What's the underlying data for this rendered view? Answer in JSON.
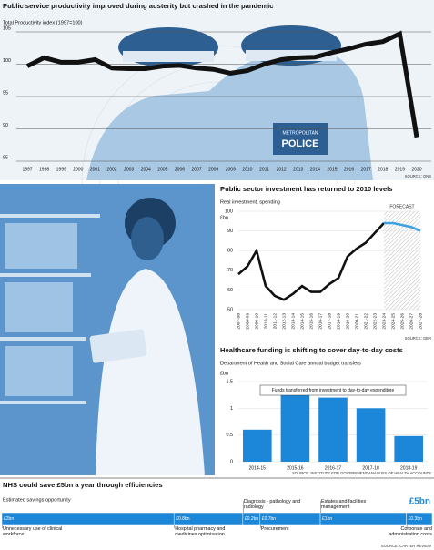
{
  "chart_data": [
    {
      "type": "line",
      "title": "Public service productivity improved during austerity but crashed in the pandemic",
      "subtitle": "Total Productivity index (1997=100)",
      "source": "SOURCE: ONS",
      "x": [
        1997,
        1998,
        1999,
        2000,
        2001,
        2002,
        2003,
        2004,
        2005,
        2006,
        2007,
        2008,
        2009,
        2010,
        2011,
        2012,
        2013,
        2014,
        2015,
        2016,
        2017,
        2018,
        2019,
        2020
      ],
      "xlim": [
        1997,
        2020
      ],
      "series": [
        {
          "color": "#111111",
          "values": [
            99.7,
            101,
            100.3,
            100.3,
            100.7,
            99.4,
            99.3,
            99.3,
            99.7,
            99.8,
            99.4,
            99.2,
            98.6,
            99,
            100,
            100.7,
            101,
            101.1,
            101.8,
            102.4,
            103.1,
            103.5,
            104.7,
            88.7
          ]
        }
      ],
      "ylim": [
        85,
        105
      ],
      "yticks": [
        105,
        100,
        95,
        90,
        85
      ],
      "grid": true
    },
    {
      "type": "line",
      "title": "Public sector investment has returned to 2010 levels",
      "subtitle": "Real investment, spending",
      "unit": "£bn",
      "source": "SOURCE: OBR",
      "annotation": "FORECAST",
      "categories": [
        "2007-08",
        "2008-09",
        "2009-10",
        "2010-11",
        "2011-12",
        "2012-13",
        "2013-14",
        "2014-15",
        "2015-16",
        "2016-17",
        "2017-18",
        "2018-19",
        "2019-20",
        "2020-21",
        "2021-22",
        "2022-23",
        "2023-24",
        "2024-25",
        "2025-26",
        "2026-27",
        "2027-28"
      ],
      "series": [
        {
          "color": "#111111",
          "values": [
            68,
            72,
            80,
            62,
            57,
            55,
            58,
            62,
            59,
            59,
            63,
            66,
            77,
            81,
            84,
            89,
            94,
            null,
            null,
            null,
            null
          ]
        },
        {
          "color": "#3fa2e0",
          "values": [
            null,
            null,
            null,
            null,
            null,
            null,
            null,
            null,
            null,
            null,
            null,
            null,
            null,
            null,
            null,
            null,
            94,
            94,
            93,
            92,
            90
          ]
        }
      ],
      "ylim": [
        50,
        100
      ],
      "yticks": [
        100,
        90,
        80,
        70,
        60,
        50
      ],
      "grid": true
    },
    {
      "type": "bar",
      "title": "Healthcare funding is shifting to cover day-to-day costs",
      "subtitle": "Department of Health and Social Care annual budget transfers",
      "unit": "£bn",
      "source": "SOURCE: INSTITUTE FOR GOVERNMENT ANALYSIS OF HEALTH ACCOUNTS",
      "annotation": "Funds transferred from investment to day-to-day expenditure",
      "categories": [
        "2014-15",
        "2015-16",
        "2016-17",
        "2017-18",
        "2018-19"
      ],
      "values": [
        0.6,
        1.25,
        1.2,
        1.0,
        0.48
      ],
      "color": "#1c87d8",
      "ylim": [
        0,
        1.5
      ],
      "yticks": [
        1.5,
        1,
        0.5,
        0
      ],
      "grid": true
    },
    {
      "type": "stacked-bar",
      "title": "NHS could save £5bn a year through efficiencies",
      "subtitle": "Estimated savings opportunity",
      "total_label": "£5bn",
      "source": "SOURCE: CARTER REVIEW",
      "color": "#1c87d8",
      "categories": [
        "Unnecessary use of clinical workforce",
        "Hospital pharmacy and medicines optimisation",
        "Diagnosis - pathology and radiology",
        "Procurement",
        "Estates and facilities management",
        "Corporate and administration costs"
      ],
      "values": [
        2,
        0.8,
        0.2,
        0.7,
        1,
        0.3
      ],
      "value_labels": [
        "£2bn",
        "£0.8bn",
        "£0.2bn",
        "£0.7bn",
        "£1bn",
        "£0.3bn"
      ]
    }
  ]
}
